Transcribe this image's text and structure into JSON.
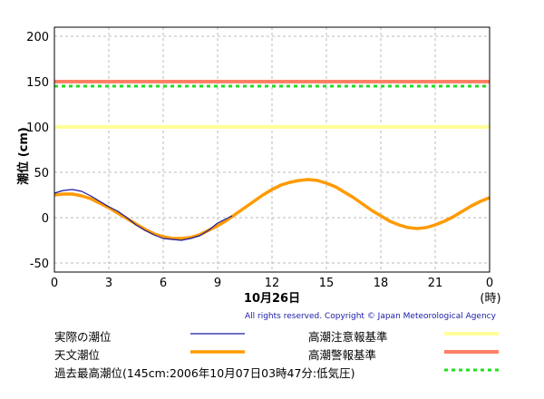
{
  "chart_data": {
    "type": "line",
    "ylabel": "潮位 (cm)",
    "xlabel": "10月26日",
    "x_unit": "(時)",
    "x_ticks": [
      "0",
      "3",
      "6",
      "9",
      "12",
      "15",
      "18",
      "21",
      "0"
    ],
    "xlim": [
      0,
      24
    ],
    "ylim": [
      -60,
      210
    ],
    "y_ticks": [
      200,
      150,
      100,
      50,
      0,
      -50
    ],
    "grid": true,
    "series": [
      {
        "name": "実際の潮位",
        "color": "#1a1aa6",
        "x": [
          0,
          0.5,
          1,
          1.5,
          2,
          2.5,
          3,
          3.5,
          4,
          4.5,
          5,
          5.5,
          6,
          6.5,
          7,
          7.5,
          8,
          8.5,
          9,
          9.5,
          9.8
        ],
        "y": [
          27,
          30,
          31,
          29,
          24,
          18,
          12,
          7,
          0,
          -8,
          -14,
          -19,
          -23,
          -24,
          -25,
          -23,
          -20,
          -14,
          -6,
          -1,
          2
        ]
      },
      {
        "name": "天文潮位",
        "color": "#ff9a00",
        "x": [
          0,
          0.5,
          1,
          1.5,
          2,
          2.5,
          3,
          3.5,
          4,
          4.5,
          5,
          5.5,
          6,
          6.5,
          7,
          7.5,
          8,
          8.5,
          9,
          9.5,
          10,
          10.5,
          11,
          11.5,
          12,
          12.5,
          13,
          13.5,
          14,
          14.5,
          15,
          15.5,
          16,
          16.5,
          17,
          17.5,
          18,
          18.5,
          19,
          19.5,
          20,
          20.5,
          21,
          21.5,
          22,
          22.5,
          23,
          23.5,
          24
        ],
        "y": [
          25,
          26,
          26,
          24,
          21,
          16,
          11,
          5,
          -1,
          -7,
          -13,
          -18,
          -21,
          -23,
          -23,
          -22,
          -19,
          -14,
          -9,
          -3,
          4,
          11,
          18,
          25,
          31,
          36,
          39,
          41,
          42,
          41,
          38,
          34,
          28,
          22,
          15,
          8,
          2,
          -4,
          -8,
          -11,
          -12,
          -11,
          -8,
          -4,
          1,
          7,
          13,
          18,
          22
        ]
      }
    ],
    "reference_lines": [
      {
        "name": "高潮注意報基準",
        "value": 100,
        "color": "#ffff99",
        "style": "solid"
      },
      {
        "name": "高潮警報基準",
        "value": 150,
        "color": "#ff7f66",
        "style": "solid"
      },
      {
        "name": "過去最高潮位(145cm:2006年10月07日03時47分:低気圧)",
        "value": 145,
        "color": "#22dd22",
        "style": "dashed"
      }
    ]
  },
  "copyright": "All rights reserved. Copyright © Japan Meteorological Agency",
  "legend": {
    "actual": "実際の潮位",
    "astronomical": "天文潮位",
    "caution": "高潮注意報基準",
    "warning": "高潮警報基準",
    "record": "過去最高潮位(145cm:2006年10月07日03時47分:低気圧)"
  }
}
